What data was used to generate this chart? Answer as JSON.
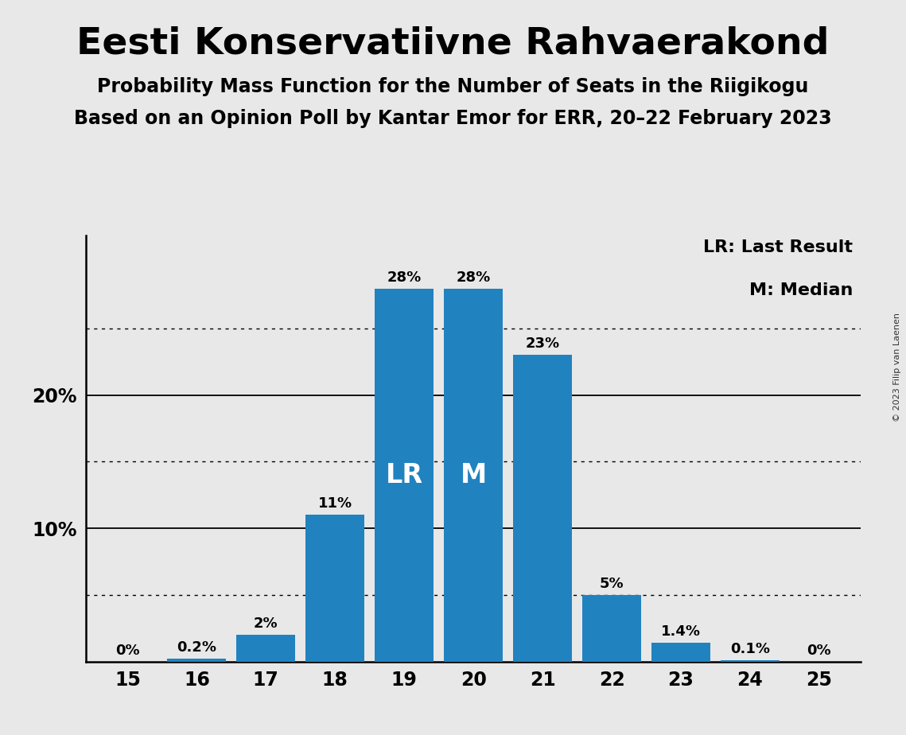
{
  "title": "Eesti Konservatiivne Rahvaerakond",
  "subtitle1": "Probability Mass Function for the Number of Seats in the Riigikogu",
  "subtitle2": "Based on an Opinion Poll by Kantar Emor for ERR, 20–22 February 2023",
  "copyright": "© 2023 Filip van Laenen",
  "seats": [
    15,
    16,
    17,
    18,
    19,
    20,
    21,
    22,
    23,
    24,
    25
  ],
  "probabilities": [
    0.0,
    0.2,
    2.0,
    11.0,
    28.0,
    28.0,
    23.0,
    5.0,
    1.4,
    0.1,
    0.0
  ],
  "labels": [
    "0%",
    "0.2%",
    "2%",
    "11%",
    "28%",
    "28%",
    "23%",
    "5%",
    "1.4%",
    "0.1%",
    "0%"
  ],
  "bar_color": "#2182c0",
  "background_color": "#e8e8e8",
  "last_result_seat": 19,
  "median_seat": 20,
  "lr_label": "LR",
  "m_label": "M",
  "legend_lr": "LR: Last Result",
  "legend_m": "M: Median",
  "dotted_lines": [
    5,
    15,
    25
  ],
  "solid_lines": [
    10,
    20
  ],
  "ylim": [
    0,
    32
  ],
  "label_fontsize": 13,
  "inner_label_fontsize": 24,
  "tick_fontsize": 17,
  "legend_fontsize": 16,
  "title_fontsize": 34,
  "subtitle_fontsize": 17
}
